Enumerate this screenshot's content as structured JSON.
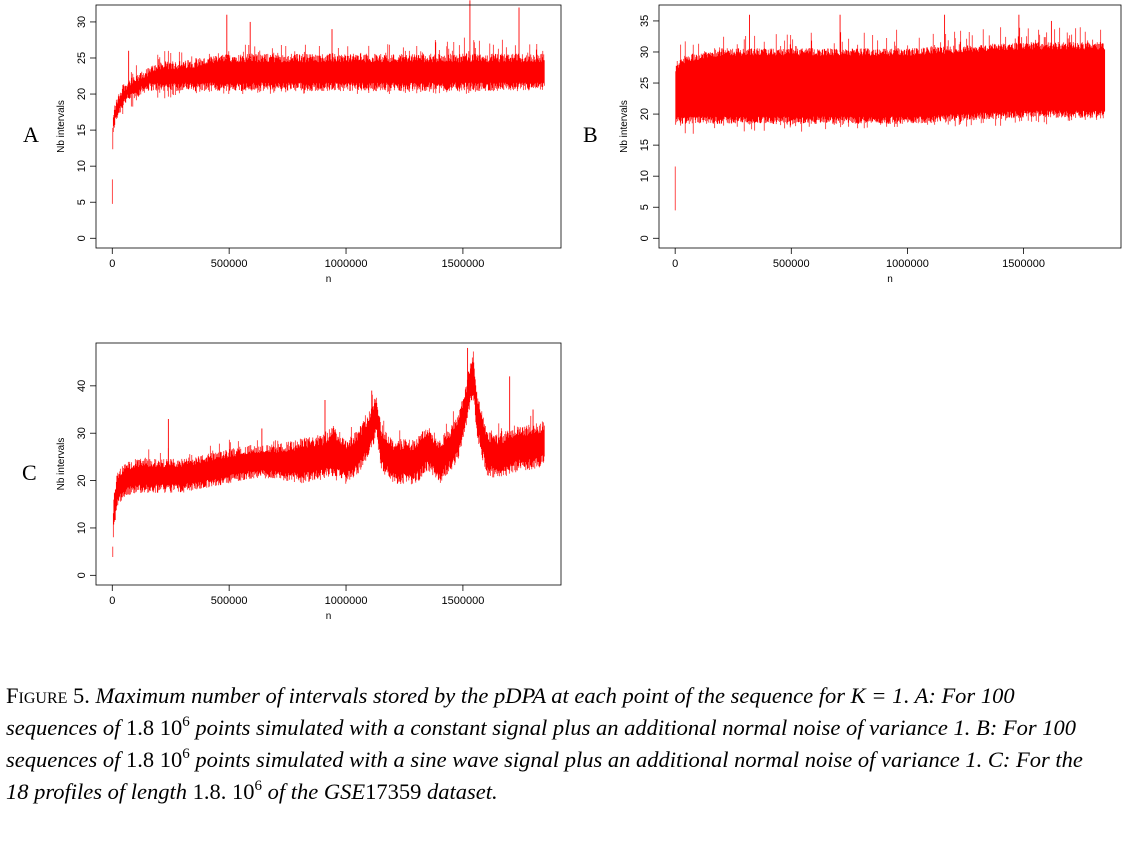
{
  "figure": {
    "labels": [
      "A",
      "B",
      "C"
    ],
    "caption": {
      "figure_word": "Figure",
      "figure_number": "5.",
      "sentence_1": "Maximum number of intervals stored by the pDPA at each point of the sequence for ",
      "k_eq": "K = 1",
      "sentence_1_end": ".",
      "a_prefix": "A: For 100 sequences of ",
      "num_base": "1.8 10",
      "num_exp": "6",
      "a_suffix": " points simulated with a constant signal plus an additional normal noise of variance 1. ",
      "b_prefix": "B: For 100 sequences of ",
      "b_suffix": " points simulated with a sine wave signal plus an additional normal noise of variance 1. ",
      "c_prefix": "C: For the 18 profiles of length ",
      "c_num": "1.8. 10",
      "c_mid": " of the ",
      "c_gse": "GSE",
      "c_gse_num": "17359",
      "c_suffix": " dataset."
    }
  },
  "colors": {
    "series": "#ff0000",
    "axis": "#000000"
  },
  "chart_data": [
    {
      "id": "A",
      "type": "line",
      "xlabel": "n",
      "ylabel": "Nb intervals",
      "xlim": [
        0,
        1850000
      ],
      "ylim": [
        0,
        31
      ],
      "xticks": [
        0,
        500000,
        1000000,
        1500000
      ],
      "xtick_labels": [
        "0",
        "500000",
        "1000000",
        "1500000"
      ],
      "yticks": [
        0,
        5,
        10,
        15,
        20,
        25,
        30
      ],
      "ytick_labels": [
        "0",
        "5",
        "10",
        "15",
        "20",
        "25",
        "30"
      ],
      "grid": false,
      "series": [
        {
          "x": [
            0,
            2000,
            5000,
            10000,
            20000,
            50000,
            100000,
            150000,
            200000,
            300000,
            500000,
            700000,
            1000000,
            1250000,
            1500000,
            1850000
          ],
          "y_min": [
            0,
            8,
            12,
            14,
            15,
            17,
            18,
            19,
            19,
            20,
            20,
            20,
            20,
            20,
            20,
            21
          ],
          "y_max": [
            10,
            18,
            20,
            21,
            22,
            23,
            24,
            25,
            26,
            26,
            27,
            27,
            27,
            27,
            28,
            28
          ],
          "y_typ_low": [
            5,
            12,
            15,
            16,
            17,
            19,
            20,
            21,
            21,
            21,
            21,
            21,
            21,
            21,
            21,
            21
          ],
          "y_typ_high": [
            8,
            15,
            17,
            18,
            19,
            21,
            22,
            23,
            24,
            24,
            25,
            25,
            25,
            25,
            25,
            25
          ],
          "spikes": [
            [
              70000,
              26
            ],
            [
              490000,
              31
            ],
            [
              590000,
              30
            ],
            [
              940000,
              29
            ],
            [
              1530000,
              33
            ],
            [
              1740000,
              32
            ]
          ]
        }
      ]
    },
    {
      "id": "B",
      "type": "line",
      "xlabel": "n",
      "ylabel": "Nb intervals",
      "xlim": [
        0,
        1850000
      ],
      "ylim": [
        0,
        36
      ],
      "xticks": [
        0,
        500000,
        1000000,
        1500000
      ],
      "xtick_labels": [
        "0",
        "500000",
        "1000000",
        "1500000"
      ],
      "yticks": [
        0,
        5,
        10,
        15,
        20,
        25,
        30,
        35
      ],
      "ytick_labels": [
        "0",
        "5",
        "10",
        "15",
        "20",
        "25",
        "30",
        "35"
      ],
      "grid": false,
      "series": [
        {
          "x": [
            0,
            2000,
            5000,
            10000,
            50000,
            200000,
            500000,
            1000000,
            1500000,
            1850000
          ],
          "y_min": [
            0,
            8,
            16,
            16,
            16,
            17,
            17,
            18,
            18,
            19
          ],
          "y_max": [
            15,
            29,
            31,
            31,
            32,
            33,
            33,
            34,
            34,
            34
          ],
          "y_typ_low": [
            5,
            18,
            19,
            19,
            19,
            19,
            19,
            19,
            20,
            20
          ],
          "y_typ_high": [
            12,
            27,
            28,
            28,
            29,
            30,
            30,
            30,
            31,
            31
          ],
          "spikes": [
            [
              320000,
              36
            ],
            [
              710000,
              36
            ],
            [
              1160000,
              36
            ],
            [
              1480000,
              36
            ],
            [
              1620000,
              35
            ]
          ]
        }
      ]
    },
    {
      "id": "C",
      "type": "line",
      "xlabel": "n",
      "ylabel": "Nb intervals",
      "xlim": [
        0,
        1850000
      ],
      "ylim": [
        0,
        47
      ],
      "xticks": [
        0,
        500000,
        1000000,
        1500000
      ],
      "xtick_labels": [
        "0",
        "500000",
        "1000000",
        "1500000"
      ],
      "yticks": [
        0,
        10,
        20,
        30,
        40
      ],
      "ytick_labels": [
        "0",
        "10",
        "20",
        "30",
        "40"
      ],
      "grid": false,
      "series": [
        {
          "x": [
            0,
            5000,
            20000,
            50000,
            100000,
            200000,
            300000,
            400000,
            500000,
            600000,
            700000,
            800000,
            900000,
            950000,
            1000000,
            1050000,
            1100000,
            1130000,
            1150000,
            1200000,
            1300000,
            1350000,
            1400000,
            1450000,
            1480000,
            1510000,
            1530000,
            1545000,
            1560000,
            1600000,
            1650000,
            1700000,
            1750000,
            1800000,
            1850000
          ],
          "y": [
            0,
            12,
            18,
            20,
            21,
            21,
            21,
            22,
            23,
            24,
            24,
            24,
            25,
            26,
            24,
            26,
            30,
            34,
            27,
            24,
            24,
            27,
            24,
            27,
            29,
            35,
            40,
            42,
            34,
            26,
            25,
            26,
            27,
            27,
            28
          ],
          "amplitude": [
            0,
            3,
            3,
            3,
            3,
            3,
            3,
            3,
            3,
            3,
            3,
            4,
            4,
            5,
            4,
            4,
            4,
            4,
            4,
            4,
            4,
            4,
            4,
            4,
            4,
            4,
            4,
            4,
            4,
            4,
            4,
            4,
            4,
            4,
            4
          ],
          "spikes": [
            [
              240000,
              33
            ],
            [
              640000,
              31
            ],
            [
              910000,
              37
            ],
            [
              1110000,
              39
            ],
            [
              1520000,
              48
            ],
            [
              1700000,
              42
            ],
            [
              1800000,
              35
            ]
          ]
        }
      ]
    }
  ]
}
